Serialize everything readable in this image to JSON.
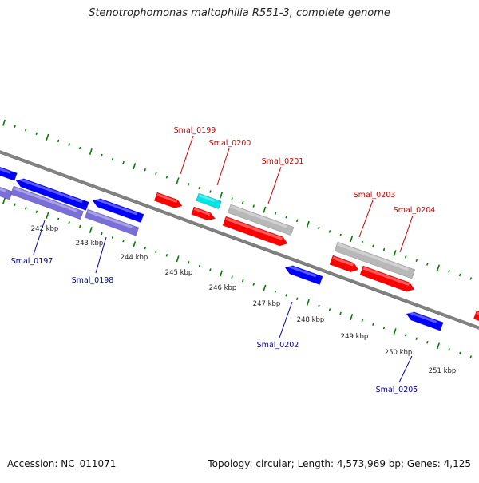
{
  "title": "Stenotrophomonas maltophilia R551-3, complete genome",
  "footer": {
    "accession": "Accession: NC_011071",
    "summary": "Topology: circular; Length: 4,573,969 bp; Genes: 4,125"
  },
  "colors": {
    "forward_gene": "#ff0000",
    "reverse_gene": "#0000ff",
    "highlight_gene": "#00e5e5",
    "rna_gene": "#b8b8b8",
    "operon_gene": "#7a6fd8",
    "forward_label": "#cc0000",
    "reverse_label": "#000099",
    "tick": "#008000",
    "backbone": "#808080"
  },
  "ruler_labels": [
    "242 kbp",
    "243 kbp",
    "244 kbp",
    "245 kbp",
    "246 kbp",
    "247 kbp",
    "248 kbp",
    "249 kbp",
    "250 kbp",
    "251 kbp"
  ],
  "genes": [
    {
      "locus": "Smal_0197",
      "strand": "reverse"
    },
    {
      "locus": "Smal_0198",
      "strand": "reverse"
    },
    {
      "locus": "Smal_0199",
      "strand": "forward"
    },
    {
      "locus": "Smal_0200",
      "strand": "forward"
    },
    {
      "locus": "Smal_0201",
      "strand": "forward"
    },
    {
      "locus": "Smal_0202",
      "strand": "reverse"
    },
    {
      "locus": "Smal_0203",
      "strand": "forward"
    },
    {
      "locus": "Smal_0204",
      "strand": "forward"
    },
    {
      "locus": "Smal_0205",
      "strand": "reverse"
    }
  ]
}
